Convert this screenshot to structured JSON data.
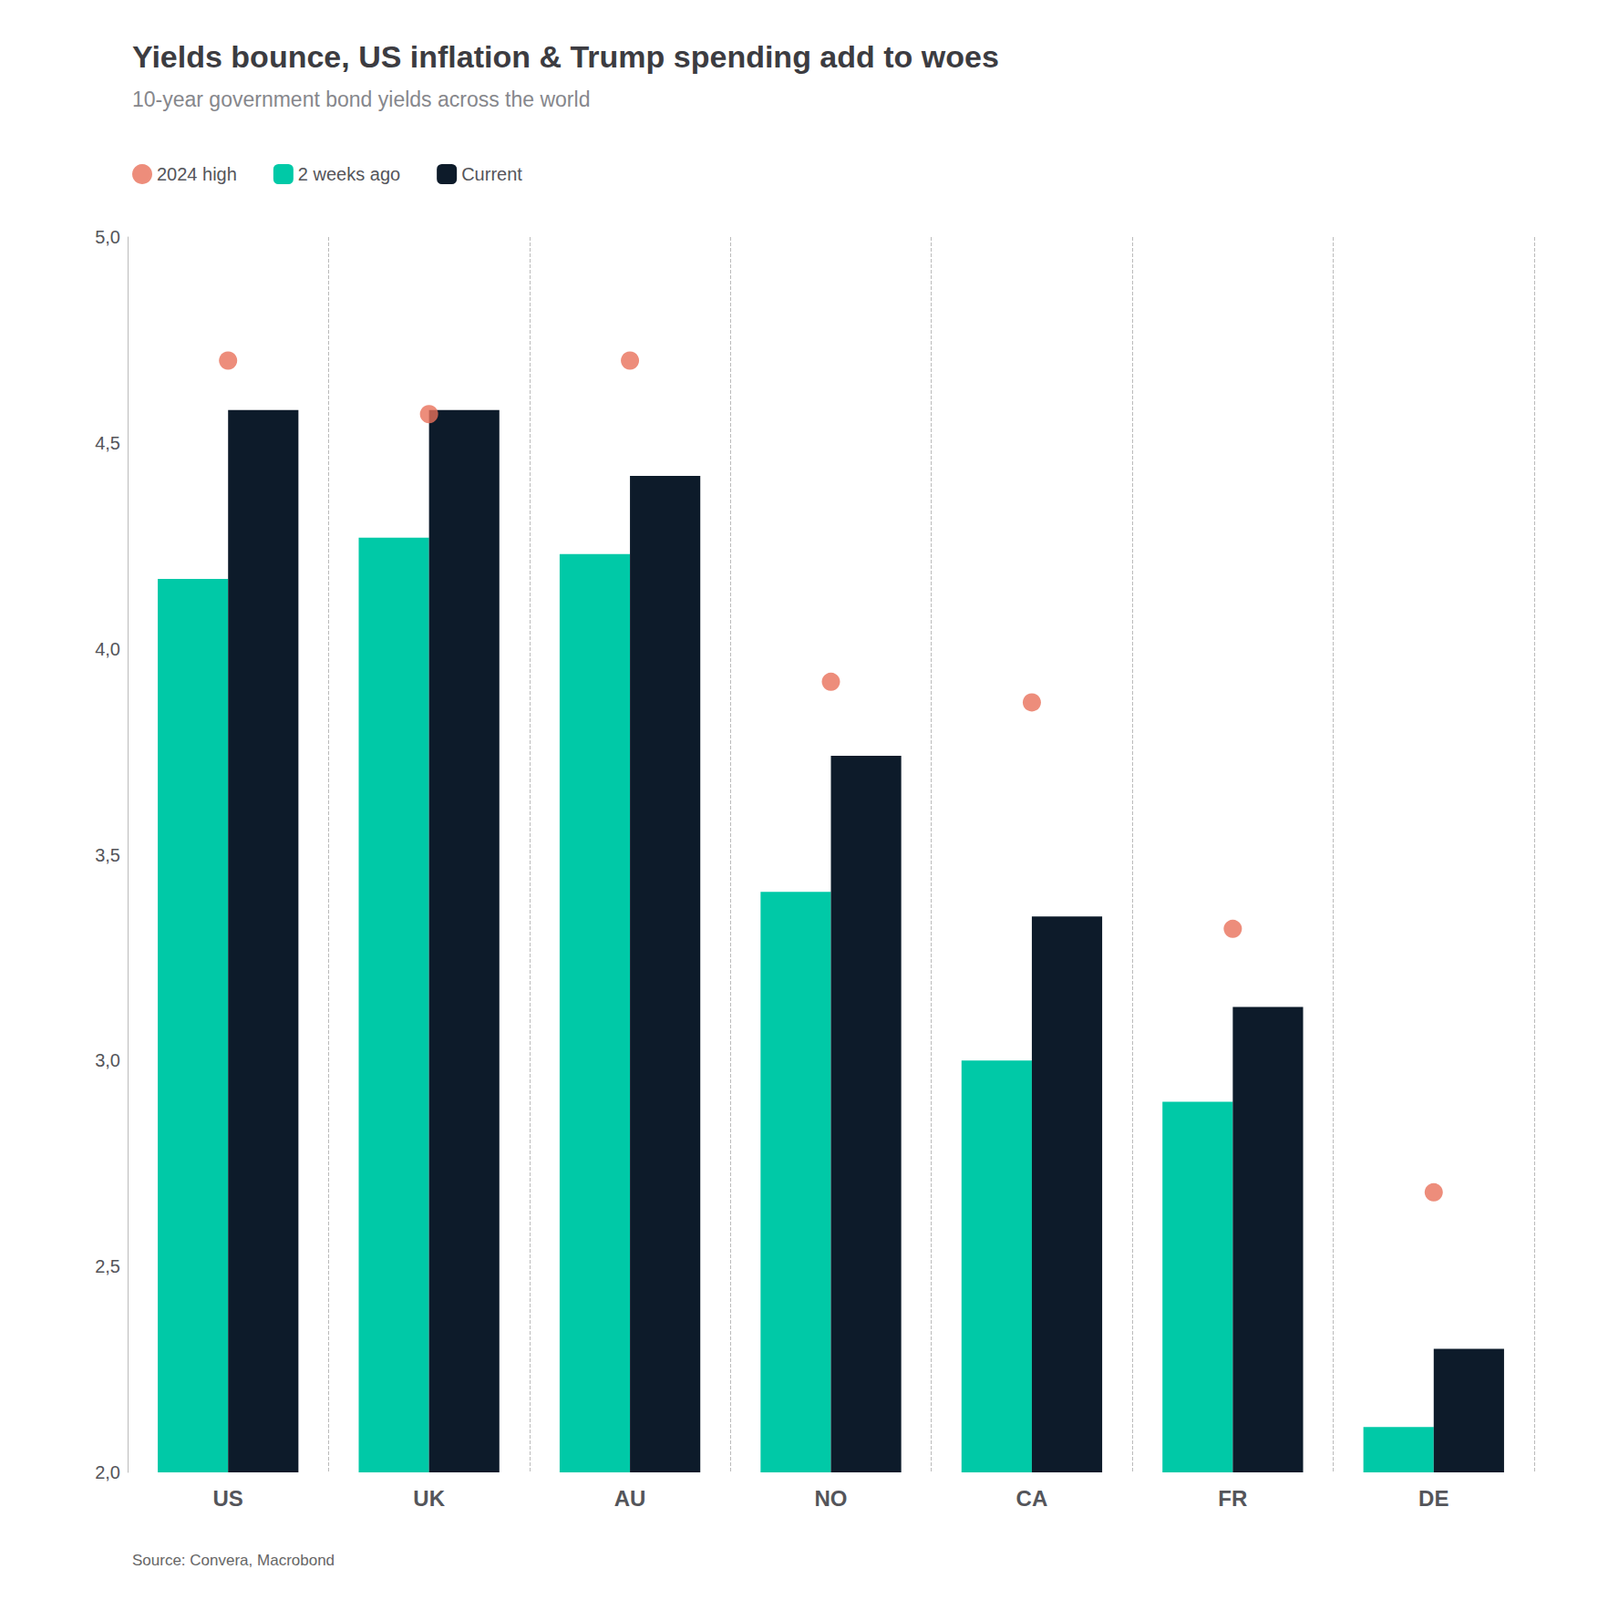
{
  "chart_data": {
    "type": "bar",
    "title": "Yields bounce, US inflation & Trump spending add to woes",
    "subtitle": "10-year government bond yields across the world",
    "source": "Source: Convera, Macrobond",
    "categories": [
      "US",
      "UK",
      "AU",
      "NO",
      "CA",
      "FR",
      "DE"
    ],
    "series": [
      {
        "name": "2024 high",
        "type": "scatter",
        "marker": "circle",
        "color": "#E8715A",
        "values": [
          4.7,
          4.57,
          4.7,
          3.92,
          3.87,
          3.32,
          2.68
        ]
      },
      {
        "name": "2 weeks ago",
        "type": "bar",
        "color": "#00C9A7",
        "values": [
          4.17,
          4.27,
          4.23,
          3.41,
          3.0,
          2.9,
          2.11
        ]
      },
      {
        "name": "Current",
        "type": "bar",
        "color": "#0D1B2A",
        "values": [
          4.58,
          4.58,
          4.42,
          3.74,
          3.35,
          3.13,
          2.3
        ]
      }
    ],
    "ylim": [
      2.0,
      5.0
    ],
    "yticks": [
      {
        "value": 2.0,
        "label": "2,0"
      },
      {
        "value": 2.5,
        "label": "2,5"
      },
      {
        "value": 3.0,
        "label": "3,0"
      },
      {
        "value": 3.5,
        "label": "3,5"
      },
      {
        "value": 4.0,
        "label": "4,0"
      },
      {
        "value": 4.5,
        "label": "4,5"
      },
      {
        "value": 5.0,
        "label": "5,0"
      }
    ],
    "grid": false,
    "legend": "top left"
  }
}
